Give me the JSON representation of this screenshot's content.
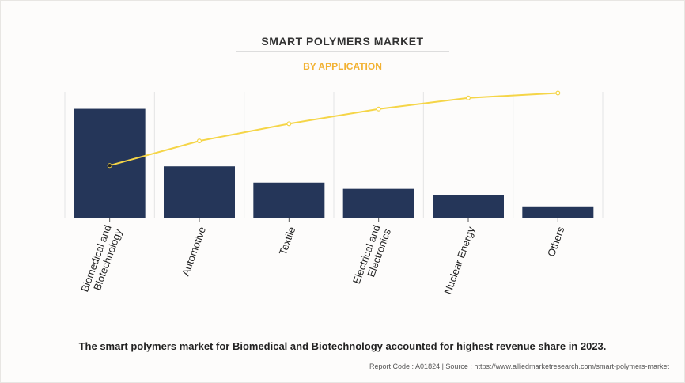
{
  "header": {
    "title": "SMART POLYMERS MARKET",
    "subtitle": "BY APPLICATION"
  },
  "footer": {
    "note": "The smart polymers market for Biomedical and Biotechnology accounted for highest revenue share in 2023.",
    "source": "Report Code : A01824  |  Source : https://www.alliedmarketresearch.com/smart-polymers-market"
  },
  "colors": {
    "bar": "#253659",
    "line": "#f5d547",
    "title": "#333333",
    "subtitle": "#f2b233"
  },
  "chart_data": {
    "type": "bar",
    "categories": [
      [
        "Biomedical and",
        "Biotechnology"
      ],
      [
        "Automotive"
      ],
      [
        "Textile"
      ],
      [
        "Electrical and",
        "Electronics"
      ],
      [
        "Nuclear Energy"
      ],
      [
        "Others"
      ]
    ],
    "series": [
      {
        "type": "bar",
        "values": [
          87,
          41,
          28,
          23,
          18,
          9
        ]
      },
      {
        "type": "line",
        "values": [
          42,
          62,
          76,
          88,
          97,
          101
        ]
      }
    ],
    "ylim": [
      0,
      100
    ],
    "grid": "vertical",
    "legend": "none"
  }
}
